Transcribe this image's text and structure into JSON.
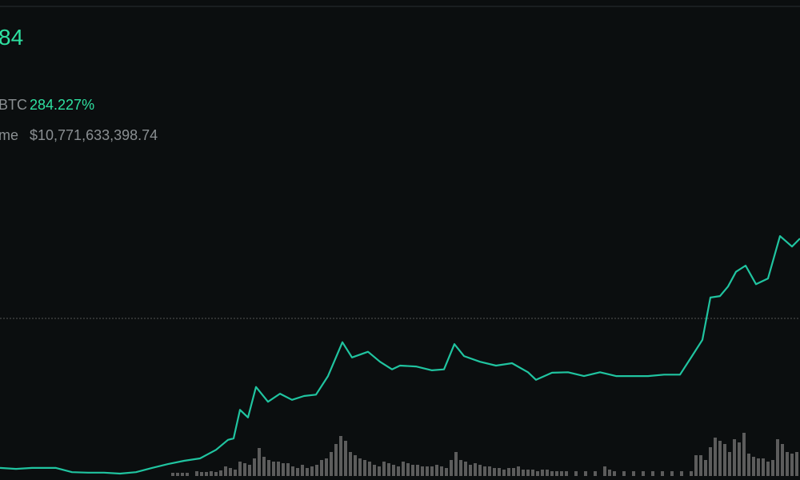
{
  "header": {
    "price": "84",
    "change_label": "BTC",
    "change": "284.227%",
    "volume_label": "me",
    "volume": "$10,771,633,398.74"
  },
  "chart_data": [
    {
      "type": "line",
      "color": "#20c4a0",
      "xlim": [
        0,
        1000
      ],
      "ylim": [
        0,
        100
      ],
      "reference": 33.1,
      "x": [
        0,
        20,
        40,
        70,
        90,
        110,
        130,
        150,
        170,
        190,
        210,
        230,
        250,
        270,
        285,
        292,
        300,
        310,
        320,
        335,
        350,
        365,
        380,
        395,
        410,
        428,
        440,
        460,
        475,
        490,
        500,
        520,
        540,
        555,
        568,
        580,
        600,
        620,
        640,
        660,
        670,
        690,
        710,
        730,
        750,
        770,
        790,
        810,
        830,
        850,
        865,
        878,
        888,
        900,
        910,
        920,
        932,
        945,
        960,
        975,
        990,
        1000
      ],
      "values": [
        1.7,
        1.5,
        1.7,
        1.7,
        0.8,
        0.7,
        0.7,
        0.5,
        0.8,
        1.7,
        2.5,
        3.2,
        3.7,
        5.5,
        7.6,
        7.9,
        13.9,
        12.3,
        18.7,
        15.6,
        17.3,
        16.0,
        16.8,
        17.1,
        21.0,
        28.1,
        24.9,
        26.1,
        24.0,
        22.4,
        23.2,
        23.0,
        22.2,
        22.4,
        27.7,
        25.2,
        24.0,
        23.2,
        23.7,
        21.8,
        20.2,
        21.7,
        21.8,
        21.0,
        21.8,
        21.0,
        21.0,
        21.0,
        21.3,
        21.3,
        25.2,
        28.6,
        37.5,
        37.8,
        39.8,
        42.9,
        44.2,
        40.3,
        41.5,
        50.4,
        48.2,
        49.9
      ]
    },
    {
      "type": "bar",
      "color": "#5c5c5c",
      "xlim": [
        0,
        1000
      ],
      "ylim": [
        0,
        100
      ],
      "x": [
        216,
        222,
        228,
        234,
        246,
        252,
        258,
        264,
        270,
        276,
        282,
        288,
        294,
        300,
        306,
        312,
        318,
        324,
        330,
        336,
        342,
        348,
        354,
        360,
        366,
        372,
        378,
        384,
        390,
        396,
        402,
        408,
        414,
        420,
        426,
        432,
        438,
        444,
        450,
        456,
        462,
        468,
        474,
        480,
        486,
        492,
        498,
        504,
        510,
        516,
        522,
        528,
        534,
        540,
        546,
        552,
        558,
        564,
        570,
        576,
        582,
        588,
        594,
        600,
        606,
        612,
        618,
        624,
        630,
        636,
        642,
        648,
        654,
        660,
        666,
        672,
        678,
        684,
        690,
        696,
        702,
        708,
        720,
        732,
        744,
        756,
        762,
        768,
        780,
        792,
        804,
        816,
        828,
        840,
        852,
        864,
        870,
        876,
        882,
        888,
        894,
        900,
        906,
        912,
        918,
        924,
        930,
        936,
        942,
        948,
        954,
        960,
        966,
        972,
        978,
        984,
        990,
        996
      ],
      "values": [
        4,
        4,
        4,
        4,
        6,
        5,
        5,
        6,
        5,
        7,
        12,
        10,
        8,
        18,
        16,
        14,
        22,
        35,
        24,
        20,
        18,
        18,
        16,
        16,
        12,
        10,
        14,
        10,
        12,
        14,
        20,
        22,
        30,
        40,
        50,
        44,
        30,
        26,
        22,
        20,
        18,
        14,
        12,
        18,
        16,
        14,
        12,
        18,
        16,
        14,
        14,
        12,
        12,
        12,
        14,
        12,
        10,
        20,
        30,
        20,
        18,
        14,
        16,
        14,
        12,
        12,
        10,
        10,
        8,
        10,
        10,
        12,
        8,
        8,
        8,
        6,
        8,
        8,
        6,
        6,
        6,
        6,
        6,
        6,
        6,
        12,
        8,
        6,
        6,
        6,
        6,
        6,
        6,
        6,
        6,
        6,
        26,
        26,
        20,
        36,
        48,
        44,
        40,
        30,
        46,
        42,
        54,
        28,
        24,
        22,
        22,
        18,
        20,
        46,
        40,
        30,
        28,
        30
      ]
    }
  ]
}
